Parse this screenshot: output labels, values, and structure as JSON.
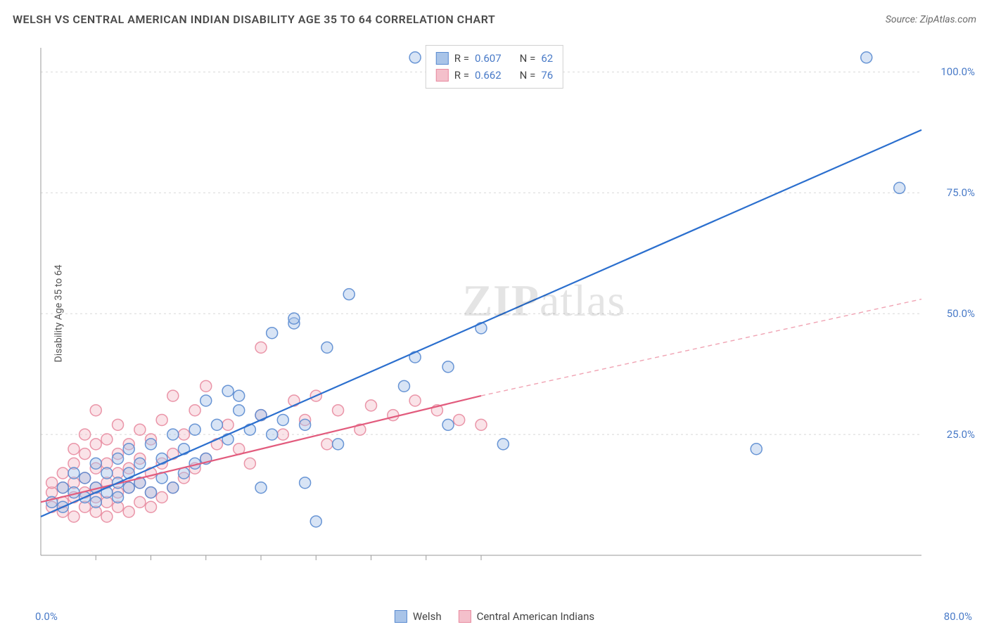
{
  "title": "WELSH VS CENTRAL AMERICAN INDIAN DISABILITY AGE 35 TO 64 CORRELATION CHART",
  "source_label": "Source: ZipAtlas.com",
  "y_axis_label": "Disability Age 35 to 64",
  "watermark": {
    "part1": "ZIP",
    "part2": "atlas"
  },
  "chart": {
    "type": "scatter",
    "background_color": "#ffffff",
    "grid_color": "#d8d8d8",
    "axis_color": "#9a9a9a",
    "xlim": [
      0,
      80
    ],
    "ylim": [
      0,
      105
    ],
    "x_ticks_minor": [
      5,
      10,
      15,
      20,
      25,
      30,
      35,
      40
    ],
    "y_ticks": [
      25,
      50,
      75,
      100
    ],
    "y_tick_labels": [
      "25.0%",
      "50.0%",
      "75.0%",
      "100.0%"
    ],
    "x_min_label": "0.0%",
    "x_max_label": "80.0%",
    "marker_radius": 8,
    "marker_opacity": 0.45,
    "marker_stroke_width": 1.5,
    "title_fontsize": 16,
    "label_fontsize": 14,
    "tick_fontsize": 15
  },
  "series": [
    {
      "id": "welsh",
      "label": "Welsh",
      "color_fill": "#a9c4e8",
      "color_stroke": "#5a8bd0",
      "r": "0.607",
      "n": "62",
      "trend": {
        "x1": 0,
        "y1": 8,
        "x2": 80,
        "y2": 88,
        "color": "#2b6fce",
        "width": 2.2
      },
      "points": [
        [
          1,
          11
        ],
        [
          2,
          14
        ],
        [
          2,
          10
        ],
        [
          3,
          13
        ],
        [
          3,
          17
        ],
        [
          4,
          12
        ],
        [
          4,
          16
        ],
        [
          5,
          11
        ],
        [
          5,
          14
        ],
        [
          5,
          19
        ],
        [
          6,
          13
        ],
        [
          6,
          17
        ],
        [
          7,
          15
        ],
        [
          7,
          20
        ],
        [
          7,
          12
        ],
        [
          8,
          14
        ],
        [
          8,
          22
        ],
        [
          8,
          17
        ],
        [
          9,
          15
        ],
        [
          9,
          19
        ],
        [
          10,
          13
        ],
        [
          10,
          23
        ],
        [
          11,
          16
        ],
        [
          11,
          20
        ],
        [
          12,
          14
        ],
        [
          12,
          25
        ],
        [
          13,
          17
        ],
        [
          13,
          22
        ],
        [
          14,
          19
        ],
        [
          14,
          26
        ],
        [
          15,
          32
        ],
        [
          15,
          20
        ],
        [
          16,
          27
        ],
        [
          17,
          24
        ],
        [
          17,
          34
        ],
        [
          18,
          30
        ],
        [
          18,
          33
        ],
        [
          19,
          26
        ],
        [
          20,
          29
        ],
        [
          20,
          14
        ],
        [
          21,
          25
        ],
        [
          21,
          46
        ],
        [
          22,
          28
        ],
        [
          23,
          48
        ],
        [
          23,
          49
        ],
        [
          24,
          27
        ],
        [
          24,
          15
        ],
        [
          25,
          7
        ],
        [
          26,
          43
        ],
        [
          27,
          23
        ],
        [
          28,
          54
        ],
        [
          33,
          35
        ],
        [
          34,
          41
        ],
        [
          37,
          27
        ],
        [
          37,
          39
        ],
        [
          40,
          47
        ],
        [
          42,
          23
        ],
        [
          34,
          103
        ],
        [
          38,
          103
        ],
        [
          65,
          22
        ],
        [
          75,
          103
        ],
        [
          78,
          76
        ]
      ]
    },
    {
      "id": "cai",
      "label": "Central American Indians",
      "color_fill": "#f4c0cb",
      "color_stroke": "#e88ba0",
      "r": "0.662",
      "n": "76",
      "trend_solid": {
        "x1": 0,
        "y1": 11,
        "x2": 40,
        "y2": 33,
        "color": "#e25b7d",
        "width": 2.2
      },
      "trend_dash": {
        "x1": 40,
        "y1": 33,
        "x2": 80,
        "y2": 53,
        "color": "#f0a3b3",
        "width": 1.4,
        "dash": "6,5"
      },
      "points": [
        [
          1,
          10
        ],
        [
          1,
          13
        ],
        [
          1,
          15
        ],
        [
          2,
          9
        ],
        [
          2,
          11
        ],
        [
          2,
          14
        ],
        [
          2,
          17
        ],
        [
          3,
          8
        ],
        [
          3,
          12
        ],
        [
          3,
          15
        ],
        [
          3,
          19
        ],
        [
          3,
          22
        ],
        [
          4,
          10
        ],
        [
          4,
          13
        ],
        [
          4,
          16
        ],
        [
          4,
          21
        ],
        [
          4,
          25
        ],
        [
          5,
          9
        ],
        [
          5,
          12
        ],
        [
          5,
          14
        ],
        [
          5,
          18
        ],
        [
          5,
          23
        ],
        [
          5,
          30
        ],
        [
          6,
          8
        ],
        [
          6,
          11
        ],
        [
          6,
          15
        ],
        [
          6,
          19
        ],
        [
          6,
          24
        ],
        [
          7,
          10
        ],
        [
          7,
          13
        ],
        [
          7,
          17
        ],
        [
          7,
          21
        ],
        [
          7,
          27
        ],
        [
          8,
          9
        ],
        [
          8,
          14
        ],
        [
          8,
          18
        ],
        [
          8,
          23
        ],
        [
          9,
          11
        ],
        [
          9,
          15
        ],
        [
          9,
          20
        ],
        [
          9,
          26
        ],
        [
          10,
          10
        ],
        [
          10,
          13
        ],
        [
          10,
          17
        ],
        [
          10,
          24
        ],
        [
          11,
          12
        ],
        [
          11,
          19
        ],
        [
          11,
          28
        ],
        [
          12,
          14
        ],
        [
          12,
          21
        ],
        [
          12,
          33
        ],
        [
          13,
          16
        ],
        [
          13,
          25
        ],
        [
          14,
          18
        ],
        [
          14,
          30
        ],
        [
          15,
          20
        ],
        [
          15,
          35
        ],
        [
          16,
          23
        ],
        [
          17,
          27
        ],
        [
          18,
          22
        ],
        [
          19,
          19
        ],
        [
          20,
          29
        ],
        [
          20,
          43
        ],
        [
          22,
          25
        ],
        [
          23,
          32
        ],
        [
          24,
          28
        ],
        [
          25,
          33
        ],
        [
          26,
          23
        ],
        [
          27,
          30
        ],
        [
          29,
          26
        ],
        [
          30,
          31
        ],
        [
          32,
          29
        ],
        [
          34,
          32
        ],
        [
          36,
          30
        ],
        [
          38,
          28
        ],
        [
          40,
          27
        ]
      ]
    }
  ],
  "stats_box": {
    "r_label": "R =",
    "n_label": "N ="
  },
  "bottom_legend": {
    "items": [
      "Welsh",
      "Central American Indians"
    ]
  }
}
